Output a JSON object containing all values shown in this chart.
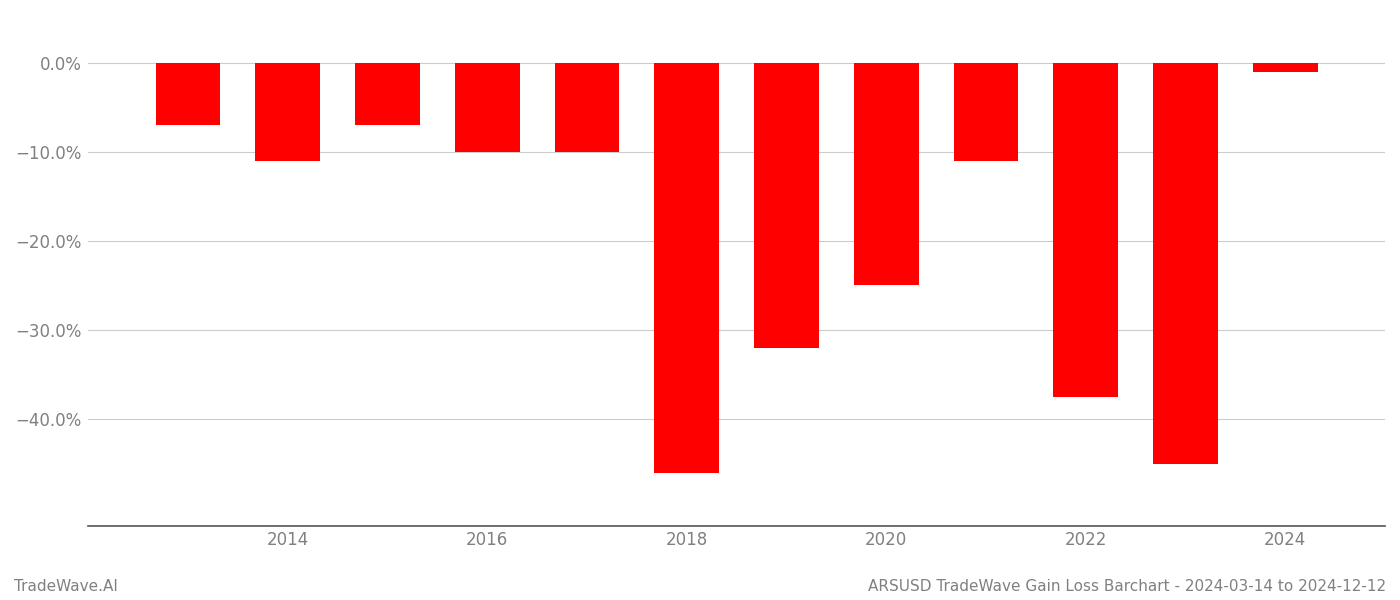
{
  "years": [
    2013,
    2014,
    2015,
    2016,
    2017,
    2018,
    2019,
    2020,
    2021,
    2022,
    2023,
    2024
  ],
  "values": [
    -7.0,
    -11.0,
    -7.0,
    -10.0,
    -10.0,
    -46.0,
    -32.0,
    -25.0,
    -11.0,
    -37.5,
    -45.0,
    -1.0
  ],
  "bar_color": "#ff0000",
  "ylim_bottom": -52,
  "ylim_top": 4.0,
  "yticks": [
    0,
    -10,
    -20,
    -30,
    -40
  ],
  "ytick_labels": [
    "0.0%",
    "−10.0%",
    "−20.0%",
    "−30.0%",
    "−40.0%"
  ],
  "xtick_years": [
    2014,
    2016,
    2018,
    2020,
    2022,
    2024
  ],
  "title": "ARSUSD TradeWave Gain Loss Barchart - 2024-03-14 to 2024-12-12",
  "footer_left": "TradeWave.AI",
  "bar_width": 0.65,
  "background_color": "#ffffff",
  "grid_color": "#cccccc",
  "text_color": "#808080",
  "spine_color": "#555555"
}
